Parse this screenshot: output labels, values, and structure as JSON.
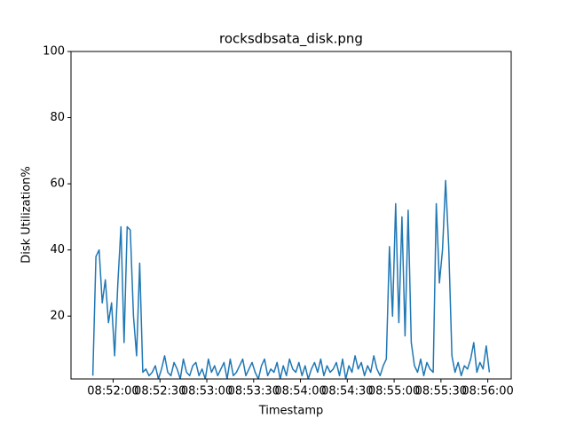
{
  "chart_data": {
    "type": "line",
    "title": "rocksdbsata_disk.png",
    "xlabel": "Timestamp",
    "ylabel": "Disk Utilization%",
    "x": [
      "08:51:47",
      "08:51:49",
      "08:51:51",
      "08:51:53",
      "08:51:55",
      "08:51:57",
      "08:51:59",
      "08:52:01",
      "08:52:03",
      "08:52:05",
      "08:52:07",
      "08:52:09",
      "08:52:11",
      "08:52:13",
      "08:52:15",
      "08:52:17",
      "08:52:19",
      "08:52:21",
      "08:52:23",
      "08:52:25",
      "08:52:27",
      "08:52:29",
      "08:52:31",
      "08:52:33",
      "08:52:35",
      "08:52:37",
      "08:52:39",
      "08:52:41",
      "08:52:43",
      "08:52:45",
      "08:52:47",
      "08:52:49",
      "08:52:51",
      "08:52:53",
      "08:52:55",
      "08:52:57",
      "08:52:59",
      "08:53:01",
      "08:53:03",
      "08:53:05",
      "08:53:07",
      "08:53:09",
      "08:53:11",
      "08:53:13",
      "08:53:15",
      "08:53:17",
      "08:53:19",
      "08:53:21",
      "08:53:23",
      "08:53:25",
      "08:53:27",
      "08:53:29",
      "08:53:31",
      "08:53:33",
      "08:53:35",
      "08:53:37",
      "08:53:39",
      "08:53:41",
      "08:53:43",
      "08:53:45",
      "08:53:47",
      "08:53:49",
      "08:53:51",
      "08:53:53",
      "08:53:55",
      "08:53:57",
      "08:53:59",
      "08:54:01",
      "08:54:03",
      "08:54:05",
      "08:54:07",
      "08:54:09",
      "08:54:11",
      "08:54:13",
      "08:54:15",
      "08:54:17",
      "08:54:19",
      "08:54:21",
      "08:54:23",
      "08:54:25",
      "08:54:27",
      "08:54:29",
      "08:54:31",
      "08:54:33",
      "08:54:35",
      "08:54:37",
      "08:54:39",
      "08:54:41",
      "08:54:43",
      "08:54:45",
      "08:54:47",
      "08:54:49",
      "08:54:51",
      "08:54:53",
      "08:54:55",
      "08:54:57",
      "08:54:59",
      "08:55:01",
      "08:55:03",
      "08:55:05",
      "08:55:07",
      "08:55:09",
      "08:55:11",
      "08:55:13",
      "08:55:15",
      "08:55:17",
      "08:55:19",
      "08:55:21",
      "08:55:23",
      "08:55:25",
      "08:55:27",
      "08:55:29",
      "08:55:31",
      "08:55:33",
      "08:55:35",
      "08:55:37",
      "08:55:39",
      "08:55:41",
      "08:55:43",
      "08:55:45",
      "08:55:47",
      "08:55:49",
      "08:55:51",
      "08:55:53",
      "08:55:55",
      "08:55:57",
      "08:55:59",
      "08:56:01"
    ],
    "series": [
      {
        "color": "#1f77b4",
        "values": [
          2,
          38,
          40,
          24,
          31,
          18,
          24,
          8,
          30,
          47,
          12,
          47,
          46,
          20,
          8,
          36,
          3,
          4,
          2,
          3,
          5,
          1,
          4,
          8,
          3,
          2,
          6,
          4,
          1,
          7,
          3,
          2,
          5,
          6,
          2,
          4,
          1,
          7,
          3,
          5,
          2,
          4,
          6,
          1,
          7,
          2,
          3,
          5,
          7,
          2,
          4,
          6,
          3,
          1,
          5,
          7,
          2,
          4,
          3,
          6,
          1,
          5,
          2,
          7,
          4,
          3,
          6,
          2,
          5,
          1,
          4,
          6,
          3,
          7,
          2,
          5,
          3,
          4,
          6,
          2,
          7,
          1,
          5,
          3,
          8,
          4,
          6,
          2,
          5,
          3,
          8,
          4,
          2,
          5,
          7,
          41,
          20,
          54,
          18,
          50,
          14,
          52,
          12,
          5,
          3,
          7,
          2,
          6,
          4,
          3,
          54,
          30,
          40,
          61,
          41,
          8,
          3,
          6,
          2,
          5,
          4,
          7,
          12,
          3,
          6,
          4,
          11,
          3
        ]
      }
    ],
    "xlim": [
      "08:51:33",
      "08:56:15"
    ],
    "xticks": [
      "08:52:00",
      "08:52:30",
      "08:53:00",
      "08:53:30",
      "08:54:00",
      "08:54:30",
      "08:55:00",
      "08:55:30",
      "08:56:00"
    ],
    "ylim": [
      1,
      100
    ],
    "yticks": [
      20,
      40,
      60,
      80,
      100
    ]
  }
}
